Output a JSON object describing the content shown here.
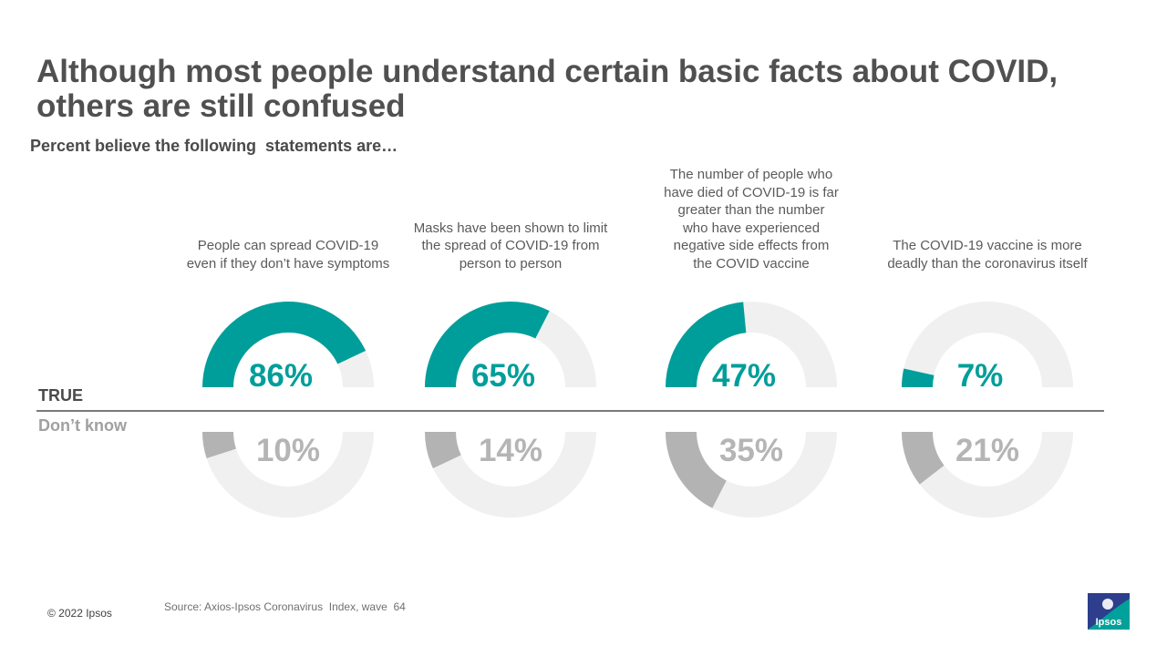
{
  "title": "Although most people understand certain basic facts about COVID, others are still confused",
  "subtitle": "Percent believe the following  statements are…",
  "row_labels": {
    "true": "TRUE",
    "dont_know": "Don’t know"
  },
  "colors": {
    "accent": "#009e9a",
    "true_track": "#f0f0f0",
    "dont_know_fill": "#b3b3b3",
    "dont_know_text": "#b5b5b5",
    "divider": "#7a7a7a",
    "logo_blue": "#2c3e8c"
  },
  "chart_data": {
    "type": "donut",
    "series": [
      {
        "name": "TRUE",
        "values": [
          86,
          65,
          47,
          7
        ]
      },
      {
        "name": "Don’t know",
        "values": [
          10,
          14,
          35,
          21
        ]
      }
    ],
    "categories": [
      "People can spread COVID-19 even if they don’t have symptoms",
      "Masks have been shown to limit the spread of COVID-19 from person to person",
      "The number of people who have died of COVID-19 is far greater than the number who have experienced negative side effects from the COVID vaccine",
      "The COVID-19 vaccine is more deadly than the coronavirus itself"
    ],
    "labels_true": [
      "86%",
      "65%",
      "47%",
      "7%"
    ],
    "labels_dont_know": [
      "10%",
      "14%",
      "35%",
      "21%"
    ],
    "statement_lines": [
      [
        "People can spread COVID-19",
        "even if they don’t have symptoms"
      ],
      [
        "Masks have been shown to limit",
        "the spread of COVID-19 from",
        "person to person"
      ],
      [
        "The number of people who",
        "have died of COVID-19 is far",
        "greater than the number",
        "who have experienced",
        "negative side effects from",
        "the COVID vaccine"
      ],
      [
        "The COVID-19 vaccine is more",
        "deadly than the coronavirus itself"
      ]
    ]
  },
  "source": "Source: Axios-Ipsos Coronavirus  Index, wave  64",
  "copyright": "© 2022 Ipsos",
  "logo": {
    "text": "Ipsos",
    "icon": "ipsos-logo-icon"
  }
}
